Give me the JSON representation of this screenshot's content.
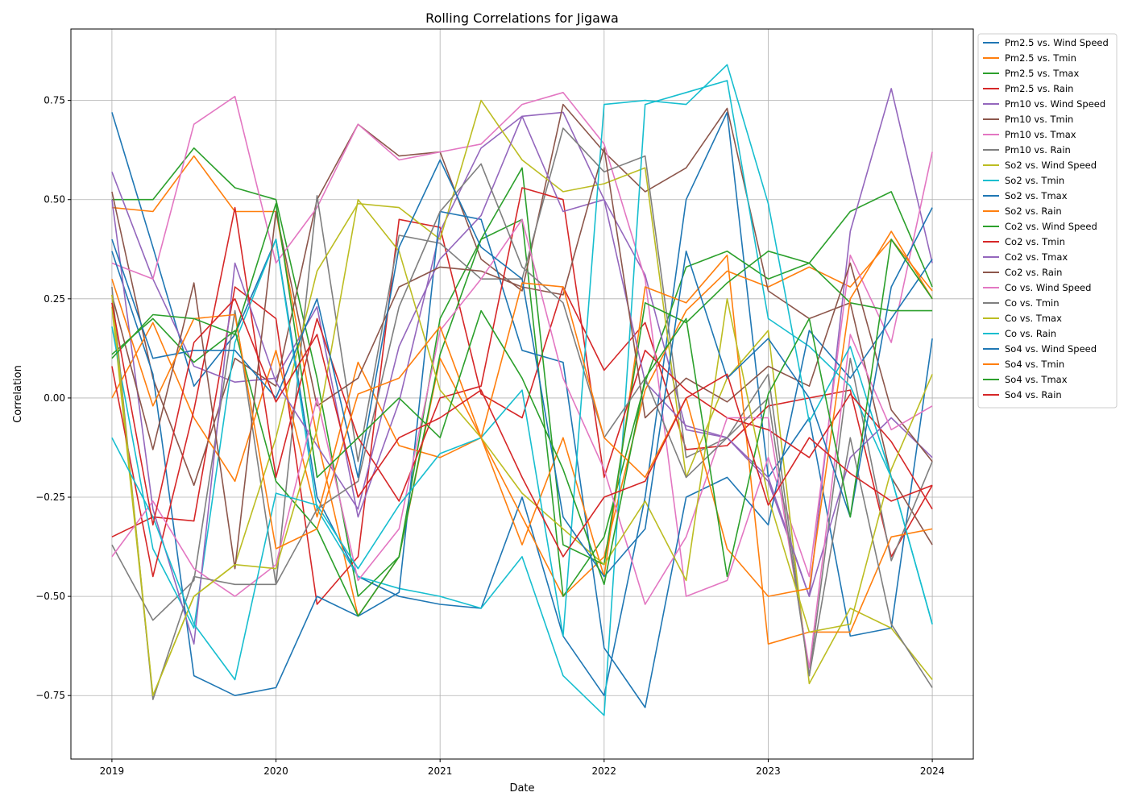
{
  "chart_data": {
    "type": "line",
    "title": "Rolling Correlations for Jigawa",
    "xlabel": "Date",
    "ylabel": "Correlation",
    "x_ticks": [
      "2019",
      "2020",
      "2021",
      "2022",
      "2023",
      "2024"
    ],
    "y_ticks": [
      "0.75",
      "0.50",
      "0.25",
      "0.00",
      "−0.25",
      "−0.50",
      "−0.75"
    ],
    "y_tick_values": [
      0.75,
      0.5,
      0.25,
      0.0,
      -0.25,
      -0.5,
      -0.75
    ],
    "xlim": [
      2018.75,
      2024.25
    ],
    "ylim": [
      -0.91,
      0.93
    ],
    "grid": true,
    "legend_position": "outside-right",
    "x": [
      2019.0,
      2019.25,
      2019.5,
      2019.75,
      2020.0,
      2020.25,
      2020.5,
      2020.75,
      2021.0,
      2021.25,
      2021.5,
      2021.75,
      2022.0,
      2022.25,
      2022.5,
      2022.75,
      2023.0,
      2023.25,
      2023.5,
      2023.75,
      2024.0
    ],
    "series": [
      {
        "name": "Pm2.5 vs. Wind Speed",
        "color": "#1f77b4",
        "values": [
          0.72,
          0.38,
          0.03,
          0.16,
          0.4,
          -0.25,
          -0.45,
          -0.5,
          -0.52,
          -0.53,
          -0.25,
          -0.6,
          -0.75,
          -0.25,
          0.5,
          0.72,
          -0.2,
          -0.05,
          -0.6,
          -0.58,
          0.15
        ]
      },
      {
        "name": "Pm2.5 vs. Tmin",
        "color": "#ff7f0e",
        "values": [
          0.48,
          0.47,
          0.61,
          0.47,
          0.47,
          -0.1,
          -0.55,
          -0.4,
          0.1,
          -0.1,
          -0.3,
          -0.5,
          -0.4,
          0.02,
          0.22,
          0.32,
          0.28,
          0.33,
          0.28,
          0.4,
          0.27
        ]
      },
      {
        "name": "Pm2.5 vs. Tmax",
        "color": "#2ca02c",
        "values": [
          0.5,
          0.5,
          0.63,
          0.53,
          0.5,
          0.05,
          -0.5,
          -0.4,
          0.2,
          0.4,
          0.45,
          -0.5,
          -0.35,
          0.04,
          0.33,
          0.37,
          0.3,
          0.34,
          0.47,
          0.52,
          0.28
        ]
      },
      {
        "name": "Pm2.5 vs. Rain",
        "color": "#d62728",
        "values": [
          -0.35,
          -0.3,
          -0.31,
          0.28,
          0.2,
          -0.52,
          -0.4,
          0.45,
          0.43,
          0.01,
          -0.05,
          0.28,
          0.07,
          0.19,
          -0.13,
          -0.12,
          -0.02,
          0.0,
          0.02,
          -0.4,
          -0.22
        ]
      },
      {
        "name": "Pm10 vs. Wind Speed",
        "color": "#9467bd",
        "values": [
          0.57,
          0.3,
          0.08,
          0.04,
          0.05,
          0.23,
          -0.3,
          -0.01,
          0.42,
          0.63,
          0.71,
          0.72,
          0.5,
          0.31,
          -0.08,
          -0.1,
          -0.21,
          -0.5,
          0.42,
          0.78,
          0.34
        ]
      },
      {
        "name": "Pm10 vs. Tmin",
        "color": "#8c564b",
        "values": [
          0.52,
          0.05,
          -0.22,
          0.1,
          0.03,
          0.5,
          0.69,
          0.61,
          0.62,
          0.35,
          0.27,
          0.74,
          0.62,
          0.52,
          0.58,
          0.73,
          0.27,
          0.2,
          0.24,
          -0.2,
          -0.37
        ]
      },
      {
        "name": "Pm10 vs. Tmax",
        "color": "#e377c2",
        "values": [
          0.34,
          0.3,
          0.69,
          0.76,
          0.34,
          0.48,
          0.69,
          0.6,
          0.62,
          0.64,
          0.74,
          0.77,
          0.64,
          0.3,
          -0.5,
          -0.46,
          -0.15,
          -0.45,
          0.36,
          0.14,
          0.62
        ]
      },
      {
        "name": "Pm10 vs. Rain",
        "color": "#7f7f7f",
        "values": [
          -0.37,
          -0.56,
          -0.46,
          0.22,
          -0.47,
          0.51,
          -0.16,
          0.41,
          0.39,
          0.3,
          0.3,
          0.68,
          0.57,
          0.61,
          -0.15,
          -0.1,
          0.06,
          -0.7,
          0.1,
          -0.41,
          -0.16
        ]
      },
      {
        "name": "So2 vs. Wind Speed",
        "color": "#bcbd22",
        "values": [
          0.23,
          -0.75,
          -0.5,
          -0.42,
          -0.1,
          0.32,
          0.49,
          0.48,
          0.4,
          0.75,
          0.6,
          0.52,
          0.54,
          0.58,
          -0.2,
          0.05,
          0.17,
          -0.72,
          -0.53,
          -0.58,
          -0.71
        ]
      },
      {
        "name": "So2 vs. Tmin",
        "color": "#17becf",
        "values": [
          0.18,
          -0.38,
          -0.58,
          0.14,
          0.4,
          -0.28,
          -0.45,
          -0.48,
          -0.5,
          -0.53,
          -0.4,
          -0.7,
          -0.8,
          0.74,
          0.77,
          0.8,
          0.2,
          0.13,
          0.03,
          -0.2,
          -0.57
        ]
      },
      {
        "name": "So2 vs. Tmax",
        "color": "#1f77b4",
        "values": [
          0.37,
          0.06,
          -0.7,
          -0.75,
          -0.73,
          -0.5,
          -0.55,
          -0.49,
          0.47,
          0.45,
          0.12,
          0.09,
          -0.63,
          -0.78,
          -0.25,
          -0.2,
          -0.32,
          0.17,
          0.05,
          0.2,
          0.35
        ]
      },
      {
        "name": "So2 vs. Rain",
        "color": "#ff7f0e",
        "values": [
          0.0,
          0.19,
          -0.05,
          -0.21,
          0.12,
          -0.3,
          0.09,
          -0.12,
          -0.15,
          -0.1,
          -0.37,
          -0.1,
          -0.45,
          0.28,
          0.24,
          0.36,
          -0.62,
          -0.59,
          -0.59,
          -0.35,
          -0.33
        ]
      },
      {
        "name": "Co2 vs. Wind Speed",
        "color": "#2ca02c",
        "values": [
          0.11,
          0.2,
          0.09,
          0.17,
          -0.21,
          -0.33,
          -0.55,
          -0.4,
          0.11,
          0.4,
          0.58,
          -0.37,
          -0.42,
          0.24,
          0.19,
          0.29,
          0.37,
          0.34,
          0.24,
          0.22,
          0.22
        ]
      },
      {
        "name": "Co2 vs. Tmin",
        "color": "#d62728",
        "values": [
          0.08,
          -0.45,
          -0.03,
          0.48,
          -0.2,
          0.2,
          -0.1,
          -0.26,
          0.0,
          0.03,
          0.53,
          0.5,
          -0.2,
          0.12,
          0.02,
          -0.05,
          -0.08,
          -0.15,
          0.01,
          -0.11,
          -0.28
        ]
      },
      {
        "name": "Co2 vs. Tmax",
        "color": "#9467bd",
        "values": [
          0.5,
          -0.28,
          -0.62,
          0.34,
          0.04,
          -0.12,
          -0.28,
          0.13,
          0.35,
          0.46,
          0.71,
          0.47,
          0.5,
          0.04,
          -0.07,
          -0.1,
          -0.2,
          -0.5,
          -0.15,
          -0.05,
          -0.15
        ]
      },
      {
        "name": "Co2 vs. Rain",
        "color": "#8c564b",
        "values": [
          0.26,
          -0.13,
          0.29,
          -0.43,
          0.47,
          -0.02,
          0.05,
          0.28,
          0.33,
          0.32,
          0.28,
          0.26,
          0.63,
          -0.05,
          0.05,
          -0.01,
          0.08,
          0.03,
          0.34,
          -0.03,
          -0.16
        ]
      },
      {
        "name": "Co vs. Wind Speed",
        "color": "#e377c2",
        "values": [
          -0.4,
          -0.26,
          -0.43,
          -0.5,
          -0.42,
          0.0,
          -0.46,
          -0.33,
          0.17,
          0.3,
          0.45,
          0.05,
          -0.18,
          -0.52,
          -0.35,
          -0.05,
          -0.05,
          -0.68,
          0.16,
          -0.08,
          -0.02
        ]
      },
      {
        "name": "Co vs. Tmin",
        "color": "#7f7f7f",
        "values": [
          0.28,
          -0.76,
          -0.45,
          -0.47,
          -0.47,
          -0.28,
          -0.21,
          0.23,
          0.47,
          0.59,
          0.33,
          0.24,
          -0.1,
          0.05,
          -0.2,
          -0.1,
          0.0,
          -0.7,
          -0.1,
          -0.57,
          -0.73
        ]
      },
      {
        "name": "Co vs. Tmax",
        "color": "#bcbd22",
        "values": [
          0.26,
          -0.75,
          -0.5,
          -0.42,
          -0.43,
          -0.08,
          0.5,
          0.37,
          0.02,
          -0.1,
          -0.24,
          -0.33,
          -0.42,
          -0.26,
          -0.46,
          0.25,
          -0.25,
          -0.59,
          -0.57,
          -0.18,
          0.06
        ]
      },
      {
        "name": "Co vs. Rain",
        "color": "#17becf",
        "values": [
          -0.1,
          -0.3,
          -0.57,
          -0.71,
          -0.24,
          -0.27,
          -0.43,
          -0.27,
          -0.14,
          -0.1,
          0.02,
          -0.6,
          0.74,
          0.75,
          0.74,
          0.84,
          0.49,
          -0.06,
          0.13,
          -0.2,
          -0.57
        ]
      },
      {
        "name": "So4 vs. Wind Speed",
        "color": "#1f77b4",
        "values": [
          0.4,
          0.1,
          0.12,
          0.12,
          0.0,
          0.25,
          -0.2,
          0.38,
          0.6,
          0.38,
          0.3,
          -0.3,
          -0.45,
          -0.33,
          0.37,
          0.05,
          0.15,
          0.0,
          -0.3,
          0.28,
          0.48
        ]
      },
      {
        "name": "So4 vs. Tmin",
        "color": "#ff7f0e",
        "values": [
          0.3,
          -0.02,
          0.2,
          0.21,
          -0.38,
          -0.33,
          0.01,
          0.05,
          0.18,
          -0.1,
          0.29,
          0.28,
          -0.1,
          -0.2,
          0.0,
          -0.38,
          -0.5,
          -0.48,
          0.25,
          0.42,
          0.25
        ]
      },
      {
        "name": "So4 vs. Tmax",
        "color": "#2ca02c",
        "values": [
          0.1,
          0.21,
          0.2,
          0.16,
          0.49,
          -0.2,
          -0.1,
          0.0,
          -0.1,
          0.22,
          0.05,
          -0.18,
          -0.47,
          0.05,
          0.2,
          -0.45,
          0.01,
          0.2,
          -0.3,
          0.4,
          0.25
        ]
      },
      {
        "name": "So4 vs. Rain",
        "color": "#d62728",
        "values": [
          0.24,
          -0.32,
          0.14,
          0.25,
          -0.01,
          0.16,
          -0.25,
          -0.1,
          -0.05,
          0.02,
          -0.2,
          -0.4,
          -0.25,
          -0.21,
          0.0,
          0.06,
          -0.27,
          -0.1,
          -0.19,
          -0.26,
          -0.22
        ]
      }
    ]
  }
}
